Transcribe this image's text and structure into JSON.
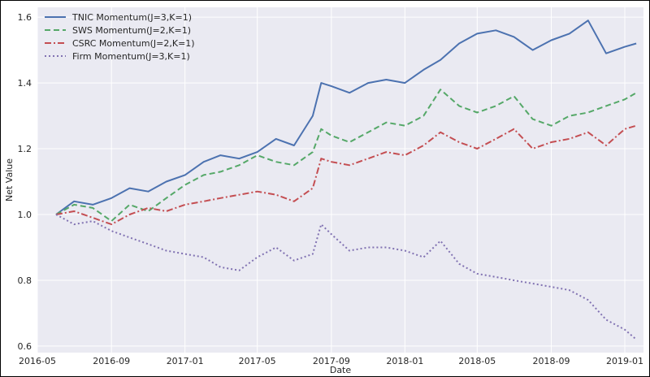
{
  "colors": {
    "plot_background": "#EAEAF2",
    "grid": "#FFFFFF",
    "text": "#262626"
  },
  "chart_data": {
    "type": "line",
    "title": "",
    "xlabel": "Date",
    "ylabel": "Net Value",
    "xlim": [
      "2016-05-01",
      "2019-02-01"
    ],
    "ylim": [
      0.58,
      1.63
    ],
    "x_ticks": [
      "2016-05",
      "2016-09",
      "2017-01",
      "2017-05",
      "2017-09",
      "2018-01",
      "2018-05",
      "2018-09",
      "2019-01"
    ],
    "y_ticks": [
      "0.6",
      "0.8",
      "1.0",
      "1.2",
      "1.4",
      "1.6"
    ],
    "grid": true,
    "legend_position": "top-left",
    "x": [
      "2016-06-01",
      "2016-07-01",
      "2016-08-01",
      "2016-09-01",
      "2016-10-01",
      "2016-11-01",
      "2016-12-01",
      "2017-01-01",
      "2017-02-01",
      "2017-03-01",
      "2017-04-01",
      "2017-05-01",
      "2017-06-01",
      "2017-07-01",
      "2017-08-01",
      "2017-08-15",
      "2017-09-01",
      "2017-10-01",
      "2017-11-01",
      "2017-12-01",
      "2018-01-01",
      "2018-02-01",
      "2018-03-01",
      "2018-04-01",
      "2018-05-01",
      "2018-06-01",
      "2018-07-01",
      "2018-08-01",
      "2018-09-01",
      "2018-10-01",
      "2018-11-01",
      "2018-12-01",
      "2019-01-01",
      "2019-01-20"
    ],
    "series": [
      {
        "name": "TNIC Momentum(J=3,K=1)",
        "color": "#4C72B0",
        "dash": "solid",
        "values": [
          1.0,
          1.04,
          1.03,
          1.05,
          1.08,
          1.07,
          1.1,
          1.12,
          1.16,
          1.18,
          1.17,
          1.19,
          1.23,
          1.21,
          1.3,
          1.4,
          1.39,
          1.37,
          1.4,
          1.41,
          1.4,
          1.44,
          1.47,
          1.52,
          1.55,
          1.56,
          1.54,
          1.5,
          1.53,
          1.55,
          1.59,
          1.49,
          1.51,
          1.52
        ]
      },
      {
        "name": "SWS Momentum(J=2,K=1)",
        "color": "#55A868",
        "dash": "dashed",
        "values": [
          1.0,
          1.03,
          1.02,
          0.98,
          1.03,
          1.01,
          1.05,
          1.09,
          1.12,
          1.13,
          1.15,
          1.18,
          1.16,
          1.15,
          1.19,
          1.26,
          1.24,
          1.22,
          1.25,
          1.28,
          1.27,
          1.3,
          1.38,
          1.33,
          1.31,
          1.33,
          1.36,
          1.29,
          1.27,
          1.3,
          1.31,
          1.33,
          1.35,
          1.37
        ]
      },
      {
        "name": "CSRC Momentum(J=2,K=1)",
        "color": "#C44E52",
        "dash": "dashdot",
        "values": [
          1.0,
          1.01,
          0.99,
          0.97,
          1.0,
          1.02,
          1.01,
          1.03,
          1.04,
          1.05,
          1.06,
          1.07,
          1.06,
          1.04,
          1.08,
          1.17,
          1.16,
          1.15,
          1.17,
          1.19,
          1.18,
          1.21,
          1.25,
          1.22,
          1.2,
          1.23,
          1.26,
          1.2,
          1.22,
          1.23,
          1.25,
          1.21,
          1.26,
          1.27
        ]
      },
      {
        "name": "Firm Momentum(J=3,K=1)",
        "color": "#8172B2",
        "dash": "dotted",
        "values": [
          1.0,
          0.97,
          0.98,
          0.95,
          0.93,
          0.91,
          0.89,
          0.88,
          0.87,
          0.84,
          0.83,
          0.87,
          0.9,
          0.86,
          0.88,
          0.97,
          0.94,
          0.89,
          0.9,
          0.9,
          0.89,
          0.87,
          0.92,
          0.85,
          0.82,
          0.81,
          0.8,
          0.79,
          0.78,
          0.77,
          0.74,
          0.68,
          0.65,
          0.62
        ]
      }
    ]
  }
}
